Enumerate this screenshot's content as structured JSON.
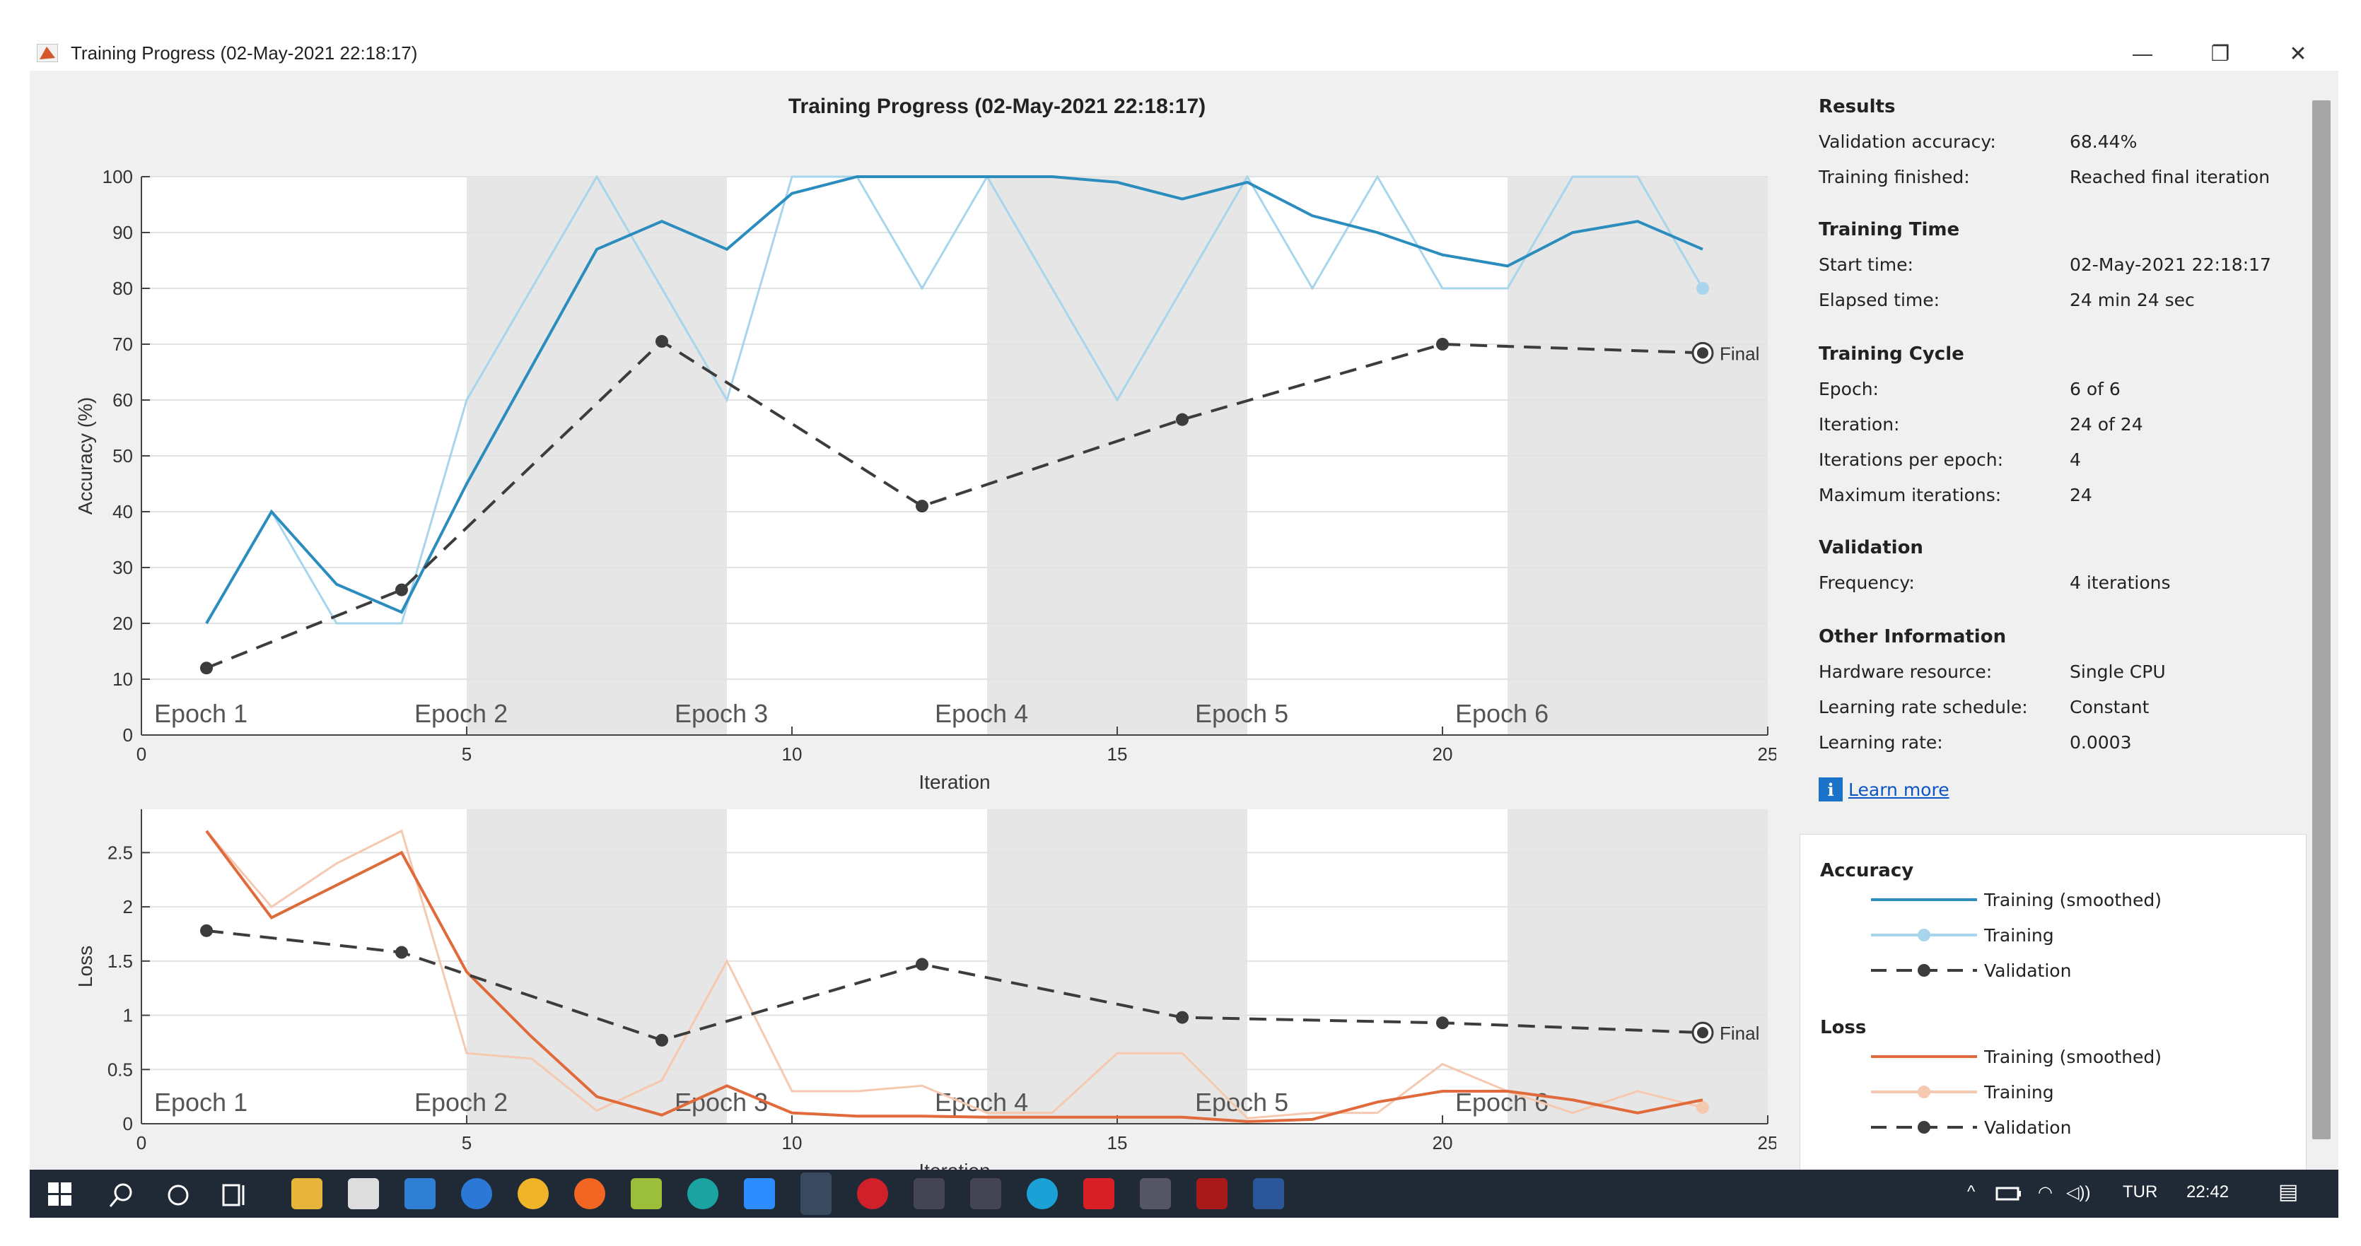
{
  "window": {
    "title": "Training Progress (02-May-2021 22:18:17)"
  },
  "window_buttons": {
    "minimize": "—",
    "restore": "❐",
    "close": "✕"
  },
  "results": {
    "heading": "Results",
    "rows": [
      {
        "label": "Validation accuracy:",
        "value": "68.44%"
      },
      {
        "label": "Training finished:",
        "value": "Reached final iteration"
      }
    ]
  },
  "training_time": {
    "heading": "Training Time",
    "rows": [
      {
        "label": "Start time:",
        "value": "02-May-2021 22:18:17"
      },
      {
        "label": "Elapsed time:",
        "value": "24 min 24 sec"
      }
    ]
  },
  "training_cycle": {
    "heading": "Training Cycle",
    "rows": [
      {
        "label": "Epoch:",
        "value": "6 of 6"
      },
      {
        "label": "Iteration:",
        "value": "24 of 24"
      },
      {
        "label": "Iterations per epoch:",
        "value": "4"
      },
      {
        "label": "Maximum iterations:",
        "value": "24"
      }
    ]
  },
  "validation": {
    "heading": "Validation",
    "rows": [
      {
        "label": "Frequency:",
        "value": "4 iterations"
      }
    ]
  },
  "other_info": {
    "heading": "Other Information",
    "rows": [
      {
        "label": "Hardware resource:",
        "value": "Single CPU"
      },
      {
        "label": "Learning rate schedule:",
        "value": "Constant"
      },
      {
        "label": "Learning rate:",
        "value": "0.0003"
      }
    ]
  },
  "learn_more": "Learn more",
  "legend": {
    "accuracy_heading": "Accuracy",
    "loss_heading": "Loss",
    "smoothed": "Training (smoothed)",
    "training": "Training",
    "validation": "Validation"
  },
  "taskbar": {
    "lang": "TUR",
    "time": "22:42",
    "arrow": "^",
    "wifi": "◠",
    "sound": "◁))",
    "notification": "▤"
  },
  "colors": {
    "acc_smoothed": "#2b8cbe",
    "acc_raw": "#a8d5eb",
    "loss_smoothed": "#e06a3b",
    "loss_raw": "#f5c9b0",
    "validation": "#3c3c3c",
    "epoch_shade": "#e6e6e6"
  },
  "chart_data": [
    {
      "type": "line",
      "title": "Training Progress (02-May-2021 22:18:17)",
      "xlabel": "Iteration",
      "ylabel": "Accuracy (%)",
      "xlim": [
        0,
        25
      ],
      "ylim": [
        0,
        100
      ],
      "xticks": [
        0,
        5,
        10,
        15,
        20,
        25
      ],
      "yticks": [
        0,
        10,
        20,
        30,
        40,
        50,
        60,
        70,
        80,
        90,
        100
      ],
      "epochs": [
        "Epoch 1",
        "Epoch 2",
        "Epoch 3",
        "Epoch 4",
        "Epoch 5",
        "Epoch 6"
      ],
      "final_label": "Final",
      "series": [
        {
          "name": "Training (smoothed)",
          "x": [
            1,
            2,
            3,
            4,
            5,
            6,
            7,
            8,
            9,
            10,
            11,
            12,
            13,
            14,
            15,
            16,
            17,
            18,
            19,
            20,
            21,
            22,
            23,
            24
          ],
          "values": [
            20,
            40,
            27,
            22,
            45,
            66,
            87,
            92,
            87,
            97,
            100,
            100,
            100,
            100,
            99,
            96,
            99,
            93,
            90,
            86,
            84,
            90,
            92,
            87
          ]
        },
        {
          "name": "Training",
          "x": [
            1,
            2,
            3,
            4,
            5,
            6,
            7,
            8,
            9,
            10,
            11,
            12,
            13,
            14,
            15,
            16,
            17,
            18,
            19,
            20,
            21,
            22,
            23,
            24
          ],
          "values": [
            20,
            40,
            20,
            20,
            60,
            80,
            100,
            80,
            60,
            100,
            100,
            80,
            100,
            80,
            60,
            80,
            100,
            80,
            100,
            80,
            80,
            100,
            100,
            80
          ]
        },
        {
          "name": "Validation",
          "x": [
            1,
            4,
            8,
            12,
            16,
            20,
            24
          ],
          "values": [
            12,
            26,
            70.5,
            41,
            56.5,
            70,
            68.44
          ]
        }
      ]
    },
    {
      "type": "line",
      "xlabel": "Iteration",
      "ylabel": "Loss",
      "xlim": [
        0,
        25
      ],
      "ylim": [
        0,
        2.9
      ],
      "xticks": [
        0,
        5,
        10,
        15,
        20,
        25
      ],
      "yticks": [
        0,
        0.5,
        1,
        1.5,
        2,
        2.5
      ],
      "ytick_labels": [
        "0",
        "0.5",
        "1",
        "1.5",
        "2",
        "2.5"
      ],
      "epochs": [
        "Epoch 1",
        "Epoch 2",
        "Epoch 3",
        "Epoch 4",
        "Epoch 5",
        "Epoch 6"
      ],
      "final_label": "Final",
      "series": [
        {
          "name": "Training (smoothed)",
          "x": [
            1,
            2,
            3,
            4,
            5,
            6,
            7,
            8,
            9,
            10,
            11,
            12,
            13,
            14,
            15,
            16,
            17,
            18,
            19,
            20,
            21,
            22,
            23,
            24
          ],
          "values": [
            2.7,
            1.9,
            2.2,
            2.5,
            1.4,
            0.8,
            0.25,
            0.08,
            0.35,
            0.1,
            0.07,
            0.07,
            0.06,
            0.06,
            0.06,
            0.06,
            0.02,
            0.04,
            0.2,
            0.3,
            0.3,
            0.22,
            0.1,
            0.22
          ]
        },
        {
          "name": "Training",
          "x": [
            1,
            2,
            3,
            4,
            5,
            6,
            7,
            8,
            9,
            10,
            11,
            12,
            13,
            14,
            15,
            16,
            17,
            18,
            19,
            20,
            21,
            22,
            23,
            24
          ],
          "values": [
            2.7,
            2.0,
            2.4,
            2.7,
            0.65,
            0.6,
            0.12,
            0.4,
            1.5,
            0.3,
            0.3,
            0.35,
            0.1,
            0.1,
            0.65,
            0.65,
            0.05,
            0.1,
            0.1,
            0.55,
            0.3,
            0.1,
            0.3,
            0.15
          ]
        },
        {
          "name": "Validation",
          "x": [
            1,
            4,
            8,
            12,
            16,
            20,
            24
          ],
          "values": [
            1.78,
            1.58,
            0.77,
            1.47,
            0.98,
            0.93,
            0.84
          ]
        }
      ]
    }
  ]
}
